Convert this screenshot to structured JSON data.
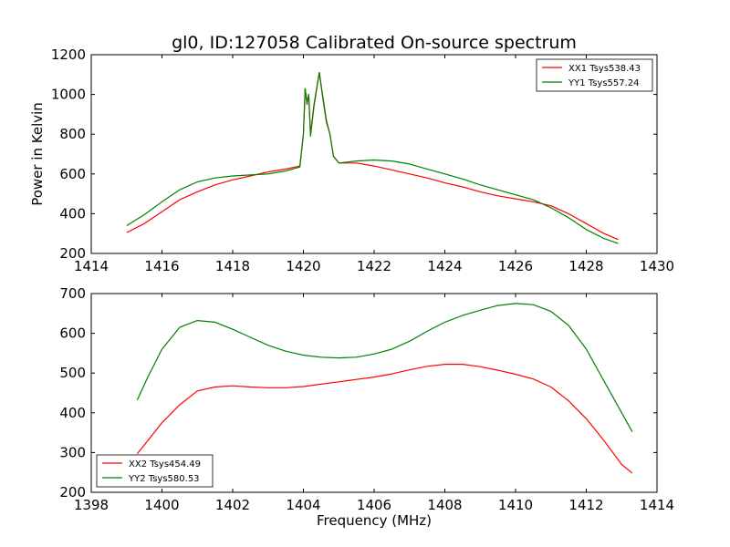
{
  "chart_data": [
    {
      "type": "line",
      "title": "gl0, ID:127058 Calibrated On-source spectrum",
      "xlabel": "",
      "ylabel": "Power in Kelvin",
      "xlim": [
        1414,
        1430
      ],
      "ylim": [
        200,
        1200
      ],
      "xticks": [
        1414,
        1416,
        1418,
        1420,
        1422,
        1424,
        1426,
        1428,
        1430
      ],
      "yticks": [
        200,
        400,
        600,
        800,
        1000,
        1200
      ],
      "legend_position": "top-right",
      "series": [
        {
          "name": "XX1 Tsys538.43",
          "color": "#ff0000",
          "points": [
            [
              1415.0,
              305
            ],
            [
              1415.5,
              350
            ],
            [
              1416.0,
              410
            ],
            [
              1416.5,
              470
            ],
            [
              1417.0,
              510
            ],
            [
              1417.5,
              545
            ],
            [
              1418.0,
              570
            ],
            [
              1418.5,
              590
            ],
            [
              1419.0,
              610
            ],
            [
              1419.5,
              625
            ],
            [
              1419.9,
              640
            ],
            [
              1420.0,
              800
            ],
            [
              1420.05,
              1030
            ],
            [
              1420.1,
              960
            ],
            [
              1420.15,
              1000
            ],
            [
              1420.2,
              800
            ],
            [
              1420.3,
              950
            ],
            [
              1420.45,
              1110
            ],
            [
              1420.55,
              990
            ],
            [
              1420.65,
              870
            ],
            [
              1420.75,
              800
            ],
            [
              1420.85,
              690
            ],
            [
              1421.0,
              655
            ],
            [
              1421.5,
              655
            ],
            [
              1422.0,
              640
            ],
            [
              1422.5,
              620
            ],
            [
              1423.0,
              600
            ],
            [
              1423.5,
              580
            ],
            [
              1424.0,
              555
            ],
            [
              1424.5,
              535
            ],
            [
              1425.0,
              510
            ],
            [
              1425.5,
              490
            ],
            [
              1426.0,
              475
            ],
            [
              1426.5,
              460
            ],
            [
              1427.0,
              440
            ],
            [
              1427.5,
              400
            ],
            [
              1428.0,
              350
            ],
            [
              1428.5,
              300
            ],
            [
              1428.9,
              270
            ]
          ]
        },
        {
          "name": "YY1 Tsys557.24",
          "color": "#008000",
          "points": [
            [
              1415.0,
              340
            ],
            [
              1415.5,
              395
            ],
            [
              1416.0,
              460
            ],
            [
              1416.5,
              520
            ],
            [
              1417.0,
              560
            ],
            [
              1417.5,
              580
            ],
            [
              1418.0,
              590
            ],
            [
              1418.5,
              595
            ],
            [
              1419.0,
              600
            ],
            [
              1419.5,
              615
            ],
            [
              1419.9,
              635
            ],
            [
              1420.0,
              800
            ],
            [
              1420.05,
              1030
            ],
            [
              1420.1,
              950
            ],
            [
              1420.15,
              1000
            ],
            [
              1420.2,
              790
            ],
            [
              1420.3,
              940
            ],
            [
              1420.45,
              1110
            ],
            [
              1420.55,
              980
            ],
            [
              1420.65,
              860
            ],
            [
              1420.75,
              800
            ],
            [
              1420.85,
              690
            ],
            [
              1421.0,
              655
            ],
            [
              1421.5,
              665
            ],
            [
              1422.0,
              670
            ],
            [
              1422.5,
              665
            ],
            [
              1423.0,
              650
            ],
            [
              1423.5,
              625
            ],
            [
              1424.0,
              600
            ],
            [
              1424.5,
              575
            ],
            [
              1425.0,
              545
            ],
            [
              1425.5,
              520
            ],
            [
              1426.0,
              495
            ],
            [
              1426.5,
              470
            ],
            [
              1427.0,
              430
            ],
            [
              1427.5,
              380
            ],
            [
              1428.0,
              320
            ],
            [
              1428.5,
              275
            ],
            [
              1428.9,
              250
            ]
          ]
        }
      ]
    },
    {
      "type": "line",
      "title": "",
      "xlabel": "Frequency (MHz)",
      "ylabel": "",
      "xlim": [
        1398,
        1414
      ],
      "ylim": [
        200,
        700
      ],
      "xticks": [
        1398,
        1400,
        1402,
        1404,
        1406,
        1408,
        1410,
        1412,
        1414
      ],
      "yticks": [
        200,
        300,
        400,
        500,
        600,
        700
      ],
      "legend_position": "bottom-left",
      "series": [
        {
          "name": "XX2 Tsys454.49",
          "color": "#ff0000",
          "points": [
            [
              1399.3,
              297
            ],
            [
              1399.6,
              330
            ],
            [
              1400.0,
              375
            ],
            [
              1400.5,
              420
            ],
            [
              1401.0,
              455
            ],
            [
              1401.5,
              465
            ],
            [
              1402.0,
              468
            ],
            [
              1402.5,
              465
            ],
            [
              1403.0,
              463
            ],
            [
              1403.5,
              463
            ],
            [
              1404.0,
              466
            ],
            [
              1404.5,
              472
            ],
            [
              1405.0,
              478
            ],
            [
              1405.5,
              484
            ],
            [
              1406.0,
              490
            ],
            [
              1406.5,
              498
            ],
            [
              1407.0,
              508
            ],
            [
              1407.5,
              517
            ],
            [
              1408.0,
              522
            ],
            [
              1408.5,
              522
            ],
            [
              1409.0,
              516
            ],
            [
              1409.5,
              507
            ],
            [
              1410.0,
              497
            ],
            [
              1410.5,
              485
            ],
            [
              1411.0,
              465
            ],
            [
              1411.5,
              430
            ],
            [
              1412.0,
              385
            ],
            [
              1412.5,
              330
            ],
            [
              1413.0,
              270
            ],
            [
              1413.3,
              248
            ]
          ]
        },
        {
          "name": "YY2 Tsys580.53",
          "color": "#008000",
          "points": [
            [
              1399.3,
              432
            ],
            [
              1399.6,
              490
            ],
            [
              1400.0,
              560
            ],
            [
              1400.5,
              615
            ],
            [
              1401.0,
              632
            ],
            [
              1401.5,
              628
            ],
            [
              1402.0,
              610
            ],
            [
              1402.5,
              590
            ],
            [
              1403.0,
              570
            ],
            [
              1403.5,
              555
            ],
            [
              1404.0,
              545
            ],
            [
              1404.5,
              540
            ],
            [
              1405.0,
              538
            ],
            [
              1405.5,
              540
            ],
            [
              1406.0,
              548
            ],
            [
              1406.5,
              560
            ],
            [
              1407.0,
              580
            ],
            [
              1407.5,
              605
            ],
            [
              1408.0,
              628
            ],
            [
              1408.5,
              645
            ],
            [
              1409.0,
              658
            ],
            [
              1409.5,
              670
            ],
            [
              1410.0,
              675
            ],
            [
              1410.5,
              672
            ],
            [
              1411.0,
              655
            ],
            [
              1411.5,
              620
            ],
            [
              1412.0,
              560
            ],
            [
              1412.5,
              480
            ],
            [
              1413.0,
              400
            ],
            [
              1413.3,
              352
            ]
          ]
        }
      ]
    }
  ]
}
